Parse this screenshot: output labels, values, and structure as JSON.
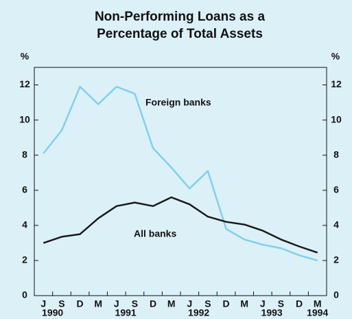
{
  "chart_data": {
    "type": "line",
    "title": [
      "Non-Performing Loans as a",
      "Percentage of Total Assets"
    ],
    "ylabel": "%",
    "y2label": "%",
    "categories": [
      "J",
      "S",
      "D",
      "M",
      "J",
      "S",
      "D",
      "M",
      "J",
      "S",
      "D",
      "M",
      "J",
      "S",
      "D",
      "M"
    ],
    "years": [
      null,
      "1990",
      null,
      null,
      null,
      "1991",
      null,
      null,
      null,
      "1992",
      null,
      null,
      null,
      "1993",
      null,
      "1994"
    ],
    "series": [
      {
        "name": "Foreign banks",
        "color": "#7fd0ee",
        "values": [
          8.1,
          9.4,
          11.9,
          10.9,
          11.9,
          11.5,
          8.4,
          7.3,
          6.1,
          7.1,
          3.8,
          3.2,
          2.9,
          2.7,
          2.3,
          2.0
        ]
      },
      {
        "name": "All banks",
        "color": "#1a1a1a",
        "values": [
          3.0,
          3.35,
          3.5,
          4.4,
          5.1,
          5.3,
          5.1,
          5.6,
          5.2,
          4.5,
          4.2,
          4.05,
          3.7,
          3.2,
          2.8,
          2.45
        ]
      }
    ],
    "ylim": [
      0,
      13
    ],
    "yticks": [
      0,
      2,
      4,
      6,
      8,
      10,
      12
    ],
    "y2lim": [
      0,
      13
    ],
    "y2ticks": [
      0,
      2,
      4,
      6,
      8,
      10,
      12
    ]
  }
}
